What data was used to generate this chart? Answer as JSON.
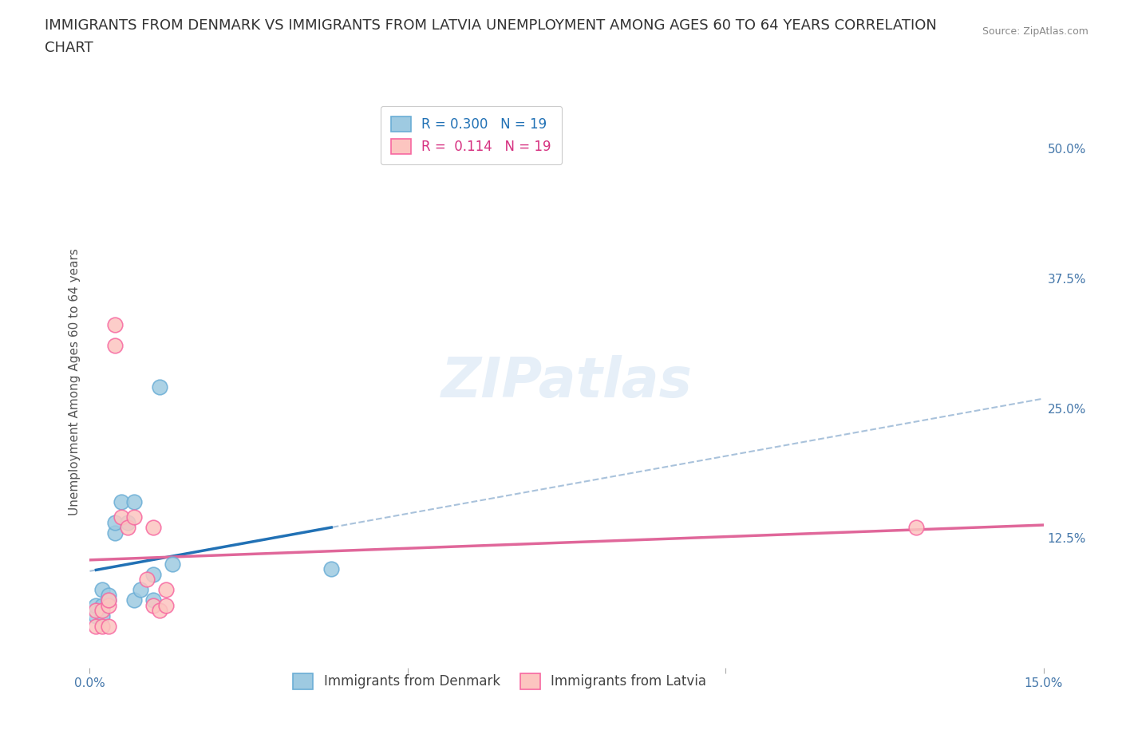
{
  "title_line1": "IMMIGRANTS FROM DENMARK VS IMMIGRANTS FROM LATVIA UNEMPLOYMENT AMONG AGES 60 TO 64 YEARS CORRELATION",
  "title_line2": "CHART",
  "source_text": "Source: ZipAtlas.com",
  "ylabel": "Unemployment Among Ages 60 to 64 years",
  "xlim": [
    0.0,
    0.15
  ],
  "ylim": [
    0.0,
    0.55
  ],
  "ytick_positions": [
    0.125,
    0.25,
    0.375,
    0.5
  ],
  "ytick_labels": [
    "12.5%",
    "25.0%",
    "37.5%",
    "50.0%"
  ],
  "watermark": "ZIPatlas",
  "denmark_color_edge": "#6baed6",
  "latvia_color_edge": "#f768a1",
  "denmark_color_fill": "#9ecae1",
  "latvia_color_fill": "#fcc5c0",
  "denmark_line_color": "#2171b5",
  "latvia_line_color": "#e0679a",
  "dashed_line_color": "#a0bcd8",
  "legend_denmark_R": "0.300",
  "legend_denmark_N": "19",
  "legend_latvia_R": "0.114",
  "legend_latvia_N": "19",
  "denmark_points_x": [
    0.001,
    0.001,
    0.002,
    0.002,
    0.002,
    0.003,
    0.003,
    0.004,
    0.004,
    0.005,
    0.006,
    0.007,
    0.007,
    0.008,
    0.01,
    0.01,
    0.011,
    0.013,
    0.038
  ],
  "denmark_points_y": [
    0.05,
    0.06,
    0.05,
    0.06,
    0.075,
    0.065,
    0.07,
    0.13,
    0.14,
    0.16,
    0.14,
    0.16,
    0.065,
    0.075,
    0.09,
    0.065,
    0.27,
    0.1,
    0.095
  ],
  "latvia_points_x": [
    0.001,
    0.001,
    0.002,
    0.002,
    0.003,
    0.003,
    0.003,
    0.004,
    0.004,
    0.005,
    0.006,
    0.007,
    0.009,
    0.01,
    0.01,
    0.011,
    0.012,
    0.012,
    0.13
  ],
  "latvia_points_y": [
    0.04,
    0.055,
    0.04,
    0.055,
    0.04,
    0.06,
    0.065,
    0.33,
    0.31,
    0.145,
    0.135,
    0.145,
    0.085,
    0.135,
    0.06,
    0.055,
    0.06,
    0.075,
    0.135
  ],
  "background_color": "#ffffff",
  "grid_color": "#cccccc",
  "title_fontsize": 13,
  "axis_label_fontsize": 11,
  "tick_fontsize": 11,
  "legend_fontsize": 12,
  "marker_size": 180
}
